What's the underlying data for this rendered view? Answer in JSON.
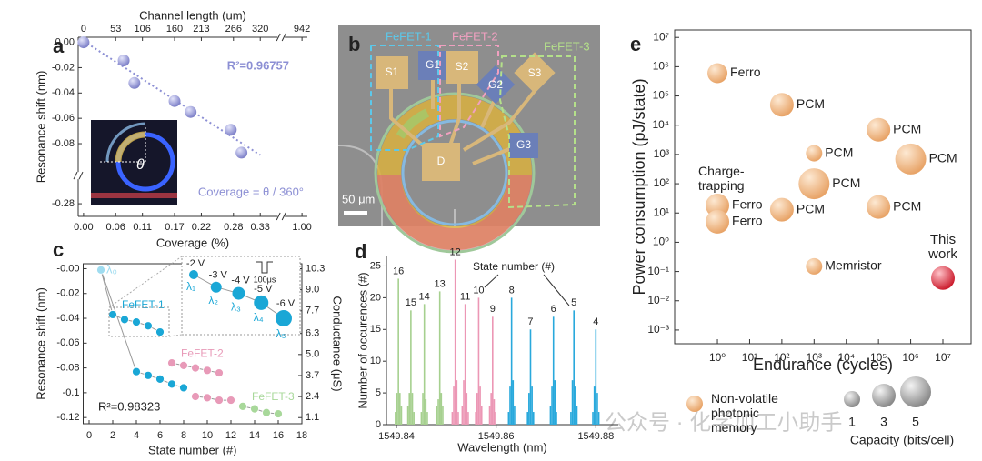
{
  "panels": [
    "a",
    "b",
    "c",
    "d",
    "e"
  ],
  "micrograph": {
    "pads": [
      "S1",
      "G1",
      "S2",
      "G2",
      "S3",
      "G3",
      "D"
    ],
    "devices": [
      "FeFET-1",
      "FeFET-2",
      "FeFET-3"
    ],
    "scale_bar": "50 μm"
  },
  "watermark": "公众号 · 化学加工小助手",
  "chart_data": [
    {
      "type": "scatter",
      "xlabel": "Coverage (%)",
      "x2label": "Channel length (um)",
      "ylabel": "Resonance shift (nm)",
      "color": "#8c8fd4",
      "x": [
        0,
        0.075,
        0.095,
        0.17,
        0.2,
        0.275,
        0.295
      ],
      "values": [
        0,
        -0.0143,
        -0.0321,
        -0.0464,
        -0.055,
        -0.069,
        -0.0871
      ],
      "xlim": [
        -0.01,
        1.01
      ],
      "xbreak": [
        0.335,
        0.995
      ],
      "ylim": [
        -0.29,
        0.004
      ],
      "ybreak": [
        -0.27,
        -0.093
      ],
      "xticks": [
        {
          "value": 0,
          "label": "0.00"
        },
        0.06,
        0.11,
        0.17,
        0.22,
        0.28,
        0.33,
        {
          "value": 1,
          "label": "1.00"
        }
      ],
      "x2ticks": [
        0,
        53,
        106,
        160,
        213,
        266,
        320,
        942
      ],
      "yticks": [
        {
          "value": 0,
          "label": "0.00"
        },
        -0.02,
        -0.04,
        -0.06,
        -0.08,
        -0.28
      ],
      "fit": {
        "x": [
          0,
          0.33
        ],
        "values": [
          0.001,
          -0.089
        ]
      },
      "annotations": [
        "R²=0.96757",
        "Coverage = θ / 360°",
        "θ"
      ]
    },
    {
      "type": "scatter",
      "xlabel": "State number (#)",
      "ylabel": "Resonance shift (nm)",
      "y2label": "Conductance (μS)",
      "xlim": [
        -0.5,
        18
      ],
      "xticks": [
        0,
        2,
        4,
        6,
        8,
        10,
        12,
        14,
        16,
        18
      ],
      "ylim": [
        -0.125,
        0.004
      ],
      "yticks": [
        {
          "value": 0,
          "label": "-0.00"
        },
        -0.02,
        -0.04,
        -0.06,
        -0.08,
        -0.1,
        -0.12
      ],
      "y2lim": [
        0.72,
        10.61
      ],
      "y2ticks": [
        10.3,
        {
          "value": 9,
          "label": "9.0"
        },
        7.7,
        6.3,
        {
          "value": 5,
          "label": "5.0"
        },
        3.7,
        2.4,
        1.1
      ],
      "series": [
        {
          "color": "#9fdcf0",
          "x": [
            1
          ],
          "values": [
            -0.001
          ]
        },
        {
          "name": "FeFET-1",
          "color": "#1aa7d6",
          "x": [
            2,
            3,
            4,
            5,
            6
          ],
          "values": [
            -0.037,
            -0.041,
            -0.043,
            -0.046,
            -0.051
          ]
        },
        {
          "color": "#1aa7d6",
          "x": [
            4,
            5,
            6,
            7,
            8
          ],
          "values": [
            -0.083,
            -0.086,
            -0.089,
            -0.093,
            -0.096
          ]
        },
        {
          "name": "FeFET-2",
          "color": "#e89ab8",
          "x": [
            7,
            8,
            9,
            10,
            11
          ],
          "values": [
            -0.076,
            -0.078,
            -0.08,
            -0.082,
            -0.084
          ]
        },
        {
          "color": "#e89ab8",
          "x": [
            9,
            10,
            11,
            12
          ],
          "values": [
            -0.103,
            -0.104,
            -0.106,
            -0.106
          ]
        },
        {
          "name": "FeFET-3",
          "color": "#a8d89a",
          "x": [
            13,
            14,
            15,
            16
          ],
          "values": [
            -0.111,
            -0.113,
            -0.116,
            -0.117
          ]
        }
      ],
      "annotations": [
        "λ₀",
        "R²=0.98323"
      ],
      "inset": {
        "points": [
          "λ₁",
          "λ₂",
          "λ₃",
          "λ₄",
          "λ₅"
        ],
        "voltages": [
          "-2 V",
          "-3 V",
          "-4 V",
          "-5 V",
          "-6 V"
        ],
        "pulse": "100μs"
      }
    },
    {
      "type": "bar",
      "xlabel": "Wavelength (nm)",
      "ylabel": "Number of occurences (#)",
      "annotation": "State number (#)",
      "xlim": [
        1549.838,
        1549.8845
      ],
      "ylim": [
        0,
        26.5
      ],
      "xticks": [
        1549.84,
        1549.86,
        1549.88
      ],
      "yticks": [
        0,
        5,
        10,
        15,
        20,
        25
      ],
      "series": [
        {
          "name": "16",
          "color": "#a6d08f",
          "x": [
            1549.8398,
            1549.8401,
            1549.8404,
            1549.8407,
            1549.841
          ],
          "values": [
            2,
            5,
            23,
            5,
            3
          ]
        },
        {
          "name": "15",
          "color": "#a6d08f",
          "x": [
            1549.8423,
            1549.8426,
            1549.8429,
            1549.8432,
            1549.8435
          ],
          "values": [
            3,
            5,
            18,
            5,
            2
          ]
        },
        {
          "name": "14",
          "color": "#a6d08f",
          "x": [
            1549.845,
            1549.8453,
            1549.8456,
            1549.8459,
            1549.8462
          ],
          "values": [
            2,
            5,
            19,
            4,
            2
          ]
        },
        {
          "name": "13",
          "color": "#a6d08f",
          "x": [
            1549.8481,
            1549.8484,
            1549.8487,
            1549.849,
            1549.8493
          ],
          "values": [
            3,
            4,
            21,
            5,
            3
          ]
        },
        {
          "name": "12",
          "color": "#ec97b5",
          "x": [
            1549.8512,
            1549.8515,
            1549.8518,
            1549.8521,
            1549.8524
          ],
          "values": [
            2,
            6,
            26,
            7,
            2
          ]
        },
        {
          "name": "11",
          "color": "#ec97b5",
          "x": [
            1549.8532,
            1549.8535,
            1549.8538,
            1549.8541,
            1549.8544
          ],
          "values": [
            3,
            7,
            19,
            5,
            2
          ]
        },
        {
          "name": "10",
          "color": "#ec97b5",
          "x": [
            1549.8559,
            1549.8562,
            1549.8565,
            1549.8568,
            1549.8571
          ],
          "values": [
            2,
            5,
            20,
            6,
            3
          ]
        },
        {
          "name": "9",
          "color": "#ec97b5",
          "x": [
            1549.8587,
            1549.859,
            1549.8593,
            1549.8596,
            1549.8599
          ],
          "values": [
            3,
            5,
            17,
            4,
            2
          ]
        },
        {
          "name": "8",
          "color": "#29a9dc",
          "x": [
            1549.8625,
            1549.8628,
            1549.8631,
            1549.8634,
            1549.8637
          ],
          "values": [
            2,
            6,
            20,
            7,
            3
          ]
        },
        {
          "name": "7",
          "color": "#29a9dc",
          "x": [
            1549.8663,
            1549.8666,
            1549.8669,
            1549.8672,
            1549.8675
          ],
          "values": [
            2,
            5,
            15,
            6,
            2
          ]
        },
        {
          "name": "6",
          "color": "#29a9dc",
          "x": [
            1549.8709,
            1549.8712,
            1549.8715,
            1549.8718,
            1549.8721
          ],
          "values": [
            3,
            6,
            17,
            7,
            2
          ]
        },
        {
          "name": "5",
          "color": "#29a9dc",
          "x": [
            1549.875,
            1549.8753,
            1549.8756,
            1549.8759,
            1549.8762
          ],
          "values": [
            2,
            7,
            18,
            6,
            3
          ]
        },
        {
          "name": "4",
          "color": "#29a9dc",
          "x": [
            1549.8794,
            1549.8797,
            1549.88,
            1549.8803,
            1549.8806
          ],
          "values": [
            2,
            6,
            15,
            5,
            2
          ]
        }
      ]
    },
    {
      "type": "bubble",
      "xlabel": "Endurance (cycles)",
      "ylabel": "Power consumption (pJ/state)",
      "log_x": true,
      "log_y": true,
      "xlim": [
        0.047,
        75000000
      ],
      "ylim": [
        0.00034,
        18000000
      ],
      "xticks": [
        {
          "value": 1,
          "label": "10⁰"
        },
        {
          "value": 10,
          "label": "10¹"
        },
        {
          "value": 100,
          "label": "10²"
        },
        {
          "value": 1000,
          "label": "10³"
        },
        {
          "value": 10000,
          "label": "10⁴"
        },
        {
          "value": 100000,
          "label": "10⁵"
        },
        {
          "value": 1000000,
          "label": "10⁶"
        },
        {
          "value": 10000000,
          "label": "10⁷"
        }
      ],
      "yticks": [
        {
          "value": 0.001,
          "label": "10⁻³"
        },
        {
          "value": 0.01,
          "label": "10⁻²"
        },
        {
          "value": 0.1,
          "label": "10⁻¹"
        },
        {
          "value": 1,
          "label": "10⁰"
        },
        {
          "value": 10,
          "label": "10¹"
        },
        {
          "value": 100,
          "label": "10²"
        },
        {
          "value": 1000,
          "label": "10³"
        },
        {
          "value": 10000,
          "label": "10⁴"
        },
        {
          "value": 100000,
          "label": "10⁵"
        },
        {
          "value": 1000000,
          "label": "10⁶"
        },
        {
          "value": 10000000,
          "label": "10⁷"
        }
      ],
      "series": [
        {
          "name": "Non-volatile photonic memory",
          "color": "#f2b27a",
          "x": [
            1,
            100,
            100000,
            1000,
            1000000,
            1000,
            100000,
            100,
            1,
            1,
            1000
          ],
          "values": [
            600000,
            50000,
            7000,
            1100,
            700,
            100,
            16,
            13,
            18,
            5,
            0.15
          ],
          "sizes": [
            2,
            3,
            3,
            1,
            5,
            5,
            3,
            3,
            3,
            3,
            1
          ],
          "point_labels": [
            "Ferro",
            "PCM",
            "PCM",
            "PCM",
            "PCM",
            "PCM",
            "PCM",
            "PCM",
            "Ferro",
            "Ferro",
            "Memristor"
          ]
        }
      ],
      "highlight": {
        "label": "This work",
        "color": "#e23a48",
        "x": [
          10000000
        ],
        "values": [
          0.06
        ],
        "sizes": [
          3
        ]
      },
      "annotation": "Charge-trapping",
      "size_legend": {
        "title": "Capacity (bits/cell)",
        "sizes": [
          1,
          3,
          5
        ]
      }
    }
  ]
}
